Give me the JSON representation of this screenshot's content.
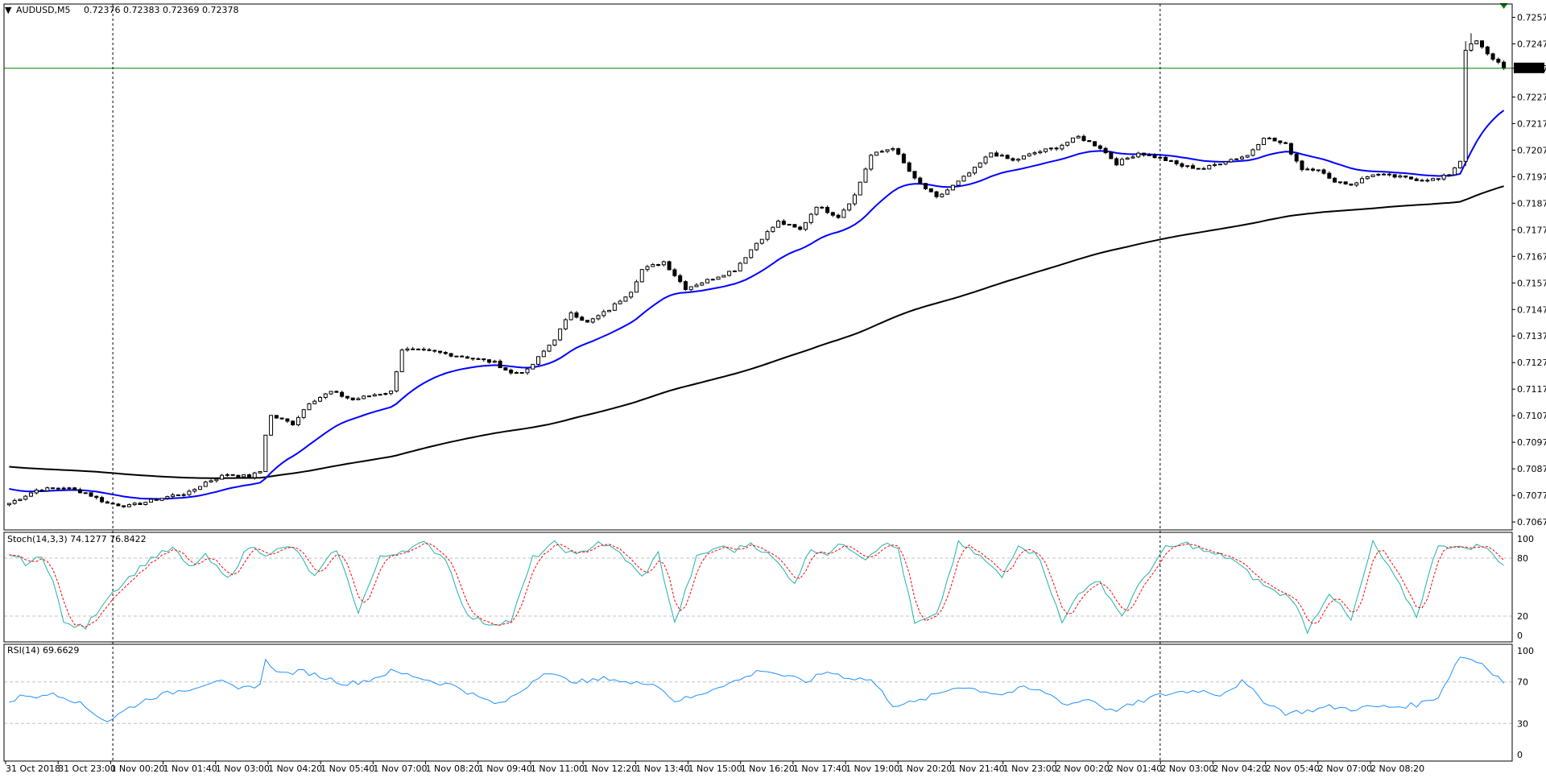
{
  "colors": {
    "background": "#ffffff",
    "bull_body": "#ffffff",
    "bear_body": "#000000",
    "candle_outline": "#000000",
    "ma_fast": "#0000ff",
    "ma_slow": "#000000",
    "stoch_main": "#20b2aa",
    "stoch_signal": "#ff0000",
    "rsi_line": "#1e90ff",
    "bid_line": "#008000",
    "level_line": "#c0c0c0",
    "marker": "#008000"
  },
  "header": {
    "arrow_glyph": "▼",
    "symbol": "AUDUSD,M5",
    "ohlc": "0.72376 0.72383 0.72369 0.72378"
  },
  "price_labels": [
    "0.72570",
    "0.72470",
    "0.72378",
    "0.72270",
    "0.72170",
    "0.72070",
    "0.71970",
    "0.71870",
    "0.71770",
    "0.71670",
    "0.71570",
    "0.71470",
    "0.71370",
    "0.71270",
    "0.71170",
    "0.71070",
    "0.70970",
    "0.70870",
    "0.70770",
    "0.70670"
  ],
  "time_labels": [
    "31 Oct 2018",
    "31 Oct 23:00",
    "1 Nov 00:20",
    "1 Nov 01:40",
    "1 Nov 03:00",
    "1 Nov 04:20",
    "1 Nov 05:40",
    "1 Nov 07:00",
    "1 Nov 08:20",
    "1 Nov 09:40",
    "1 Nov 11:00",
    "1 Nov 12:20",
    "1 Nov 13:40",
    "1 Nov 15:00",
    "1 Nov 16:20",
    "1 Nov 17:40",
    "1 Nov 19:00",
    "1 Nov 20:20",
    "1 Nov 21:40",
    "1 Nov 23:00",
    "2 Nov 00:20",
    "2 Nov 01:40",
    "2 Nov 03:00",
    "2 Nov 04:20",
    "2 Nov 05:40",
    "2 Nov 07:00",
    "2 Nov 08:20"
  ],
  "stoch": {
    "label": "Stoch(14,3,3) 74.1277 76.8422",
    "axis_labels": [
      "100",
      "80",
      "20",
      "0"
    ]
  },
  "rsi": {
    "label": "RSI(14) 69.6629",
    "axis_labels": [
      "100",
      "70",
      "30",
      "0"
    ]
  },
  "chart_data": {
    "type": "candlestick",
    "symbol": "AUDUSD",
    "timeframe": "M5",
    "ylim": [
      0.7064,
      0.7262
    ],
    "current_bid": 0.72378,
    "anchors_price": [
      [
        0,
        0.7074
      ],
      [
        5,
        0.7079
      ],
      [
        10,
        0.708
      ],
      [
        14,
        0.7078
      ],
      [
        18,
        0.7074
      ],
      [
        22,
        0.7073
      ],
      [
        26,
        0.7075
      ],
      [
        30,
        0.7077
      ],
      [
        33,
        0.7078
      ],
      [
        36,
        0.7082
      ],
      [
        40,
        0.7085
      ],
      [
        44,
        0.7084
      ],
      [
        46,
        0.7086
      ],
      [
        47,
        0.71
      ],
      [
        48,
        0.7107
      ],
      [
        52,
        0.7104
      ],
      [
        55,
        0.7112
      ],
      [
        59,
        0.7116
      ],
      [
        63,
        0.7113
      ],
      [
        67,
        0.7115
      ],
      [
        70,
        0.7116
      ],
      [
        72,
        0.7132
      ],
      [
        78,
        0.7131
      ],
      [
        84,
        0.7129
      ],
      [
        89,
        0.7127
      ],
      [
        92,
        0.7123
      ],
      [
        95,
        0.7124
      ],
      [
        100,
        0.7136
      ],
      [
        103,
        0.7146
      ],
      [
        106,
        0.7142
      ],
      [
        110,
        0.7147
      ],
      [
        114,
        0.7154
      ],
      [
        116,
        0.7162
      ],
      [
        120,
        0.7165
      ],
      [
        124,
        0.7155
      ],
      [
        128,
        0.7158
      ],
      [
        133,
        0.7162
      ],
      [
        137,
        0.7172
      ],
      [
        141,
        0.718
      ],
      [
        145,
        0.7177
      ],
      [
        148,
        0.7186
      ],
      [
        152,
        0.7182
      ],
      [
        155,
        0.719
      ],
      [
        158,
        0.7205
      ],
      [
        162,
        0.7208
      ],
      [
        166,
        0.7196
      ],
      [
        170,
        0.7189
      ],
      [
        174,
        0.7195
      ],
      [
        177,
        0.72
      ],
      [
        180,
        0.7206
      ],
      [
        184,
        0.7203
      ],
      [
        188,
        0.7206
      ],
      [
        192,
        0.7208
      ],
      [
        196,
        0.7212
      ],
      [
        200,
        0.7208
      ],
      [
        203,
        0.7202
      ],
      [
        207,
        0.7206
      ],
      [
        211,
        0.7204
      ],
      [
        215,
        0.7201
      ],
      [
        219,
        0.72
      ],
      [
        223,
        0.7203
      ],
      [
        227,
        0.7205
      ],
      [
        230,
        0.7212
      ],
      [
        234,
        0.7209
      ],
      [
        237,
        0.72
      ],
      [
        240,
        0.72
      ],
      [
        242,
        0.7196
      ],
      [
        246,
        0.7194
      ],
      [
        250,
        0.7198
      ],
      [
        254,
        0.7197
      ],
      [
        258,
        0.7196
      ],
      [
        262,
        0.7196
      ],
      [
        264,
        0.7198
      ],
      [
        266,
        0.7203
      ],
      [
        267,
        0.7245
      ],
      [
        269,
        0.7248
      ],
      [
        271,
        0.7243
      ],
      [
        273,
        0.724
      ],
      [
        274,
        0.72378
      ]
    ],
    "anchors_stoch": [
      [
        0,
        85
      ],
      [
        3,
        75
      ],
      [
        6,
        80
      ],
      [
        8,
        60
      ],
      [
        10,
        12
      ],
      [
        14,
        8
      ],
      [
        18,
        40
      ],
      [
        22,
        60
      ],
      [
        26,
        80
      ],
      [
        30,
        90
      ],
      [
        33,
        70
      ],
      [
        36,
        82
      ],
      [
        40,
        58
      ],
      [
        44,
        92
      ],
      [
        47,
        85
      ],
      [
        52,
        92
      ],
      [
        56,
        60
      ],
      [
        60,
        90
      ],
      [
        64,
        25
      ],
      [
        68,
        80
      ],
      [
        72,
        88
      ],
      [
        76,
        95
      ],
      [
        80,
        80
      ],
      [
        84,
        20
      ],
      [
        88,
        12
      ],
      [
        92,
        15
      ],
      [
        96,
        80
      ],
      [
        100,
        95
      ],
      [
        104,
        82
      ],
      [
        108,
        97
      ],
      [
        112,
        85
      ],
      [
        116,
        60
      ],
      [
        119,
        85
      ],
      [
        122,
        12
      ],
      [
        126,
        80
      ],
      [
        130,
        92
      ],
      [
        133,
        88
      ],
      [
        136,
        96
      ],
      [
        140,
        80
      ],
      [
        144,
        55
      ],
      [
        147,
        90
      ],
      [
        150,
        85
      ],
      [
        153,
        95
      ],
      [
        157,
        80
      ],
      [
        160,
        95
      ],
      [
        163,
        90
      ],
      [
        166,
        12
      ],
      [
        170,
        20
      ],
      [
        174,
        95
      ],
      [
        178,
        82
      ],
      [
        182,
        60
      ],
      [
        185,
        95
      ],
      [
        189,
        80
      ],
      [
        193,
        12
      ],
      [
        196,
        45
      ],
      [
        200,
        55
      ],
      [
        204,
        20
      ],
      [
        208,
        60
      ],
      [
        212,
        90
      ],
      [
        216,
        95
      ],
      [
        220,
        85
      ],
      [
        224,
        80
      ],
      [
        228,
        60
      ],
      [
        232,
        45
      ],
      [
        235,
        40
      ],
      [
        238,
        5
      ],
      [
        242,
        45
      ],
      [
        246,
        15
      ],
      [
        250,
        96
      ],
      [
        254,
        60
      ],
      [
        258,
        20
      ],
      [
        262,
        95
      ],
      [
        266,
        90
      ],
      [
        270,
        93
      ],
      [
        274,
        74
      ]
    ],
    "anchors_stoch_signal_lag": 1,
    "anchors_rsi": [
      [
        0,
        50
      ],
      [
        3,
        58
      ],
      [
        6,
        55
      ],
      [
        8,
        60
      ],
      [
        12,
        52
      ],
      [
        15,
        42
      ],
      [
        18,
        32
      ],
      [
        22,
        45
      ],
      [
        26,
        55
      ],
      [
        30,
        60
      ],
      [
        34,
        65
      ],
      [
        38,
        72
      ],
      [
        42,
        62
      ],
      [
        46,
        68
      ],
      [
        47,
        90
      ],
      [
        50,
        78
      ],
      [
        54,
        80
      ],
      [
        58,
        74
      ],
      [
        62,
        68
      ],
      [
        66,
        72
      ],
      [
        70,
        80
      ],
      [
        74,
        76
      ],
      [
        78,
        70
      ],
      [
        82,
        66
      ],
      [
        86,
        55
      ],
      [
        90,
        48
      ],
      [
        94,
        62
      ],
      [
        98,
        80
      ],
      [
        102,
        72
      ],
      [
        106,
        70
      ],
      [
        110,
        74
      ],
      [
        114,
        68
      ],
      [
        118,
        70
      ],
      [
        122,
        52
      ],
      [
        126,
        56
      ],
      [
        130,
        66
      ],
      [
        134,
        72
      ],
      [
        138,
        82
      ],
      [
        142,
        76
      ],
      [
        146,
        70
      ],
      [
        150,
        80
      ],
      [
        154,
        74
      ],
      [
        158,
        72
      ],
      [
        162,
        48
      ],
      [
        166,
        50
      ],
      [
        170,
        58
      ],
      [
        174,
        66
      ],
      [
        178,
        62
      ],
      [
        182,
        58
      ],
      [
        186,
        64
      ],
      [
        190,
        60
      ],
      [
        194,
        48
      ],
      [
        198,
        54
      ],
      [
        202,
        42
      ],
      [
        206,
        48
      ],
      [
        210,
        56
      ],
      [
        214,
        60
      ],
      [
        218,
        62
      ],
      [
        222,
        58
      ],
      [
        226,
        70
      ],
      [
        230,
        52
      ],
      [
        234,
        40
      ],
      [
        238,
        42
      ],
      [
        242,
        46
      ],
      [
        246,
        44
      ],
      [
        250,
        46
      ],
      [
        254,
        46
      ],
      [
        258,
        48
      ],
      [
        262,
        56
      ],
      [
        266,
        95
      ],
      [
        270,
        88
      ],
      [
        274,
        70
      ]
    ],
    "ma_fast_period": 21,
    "ma_slow_period": 144,
    "ma_slow_seed": 0.7088,
    "ma_fast_seed": 0.708,
    "levels_stoch": [
      80,
      20
    ],
    "levels_rsi": [
      70,
      30
    ],
    "period_separators_at_bar": [
      19,
      211
    ]
  }
}
